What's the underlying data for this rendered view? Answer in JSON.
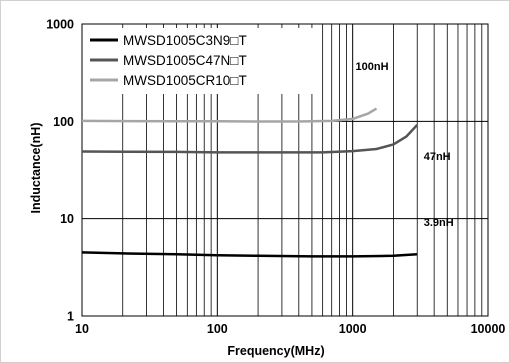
{
  "chart_data": {
    "type": "line",
    "title": "",
    "xlabel": "Frequency(MHz)",
    "ylabel": "Inductance(nH)",
    "xscale": "log",
    "yscale": "log",
    "xlim": [
      10,
      10000
    ],
    "ylim": [
      1,
      1000
    ],
    "x_tick_labels": [
      "10",
      "100",
      "1000",
      "10000"
    ],
    "y_tick_labels": [
      "1",
      "10",
      "100",
      "1000"
    ],
    "grid": true,
    "legend_position": "top-left",
    "series": [
      {
        "name": "MWSD1005C3N9□T",
        "color": "#000000",
        "points": [
          [
            10,
            4.5
          ],
          [
            20,
            4.4
          ],
          [
            50,
            4.3
          ],
          [
            100,
            4.2
          ],
          [
            200,
            4.15
          ],
          [
            500,
            4.1
          ],
          [
            1000,
            4.1
          ],
          [
            2000,
            4.15
          ],
          [
            3000,
            4.3
          ]
        ]
      },
      {
        "name": "MWSD1005C47N□T",
        "color": "#555555",
        "points": [
          [
            10,
            49
          ],
          [
            50,
            48.5
          ],
          [
            100,
            48
          ],
          [
            300,
            48
          ],
          [
            600,
            48
          ],
          [
            1000,
            49.5
          ],
          [
            1500,
            52
          ],
          [
            2000,
            58
          ],
          [
            2500,
            70
          ],
          [
            3000,
            92
          ]
        ]
      },
      {
        "name": "MWSD1005CR10□T",
        "color": "#a6a6a6",
        "points": [
          [
            10,
            101
          ],
          [
            50,
            100
          ],
          [
            100,
            100
          ],
          [
            200,
            99.5
          ],
          [
            400,
            99.5
          ],
          [
            700,
            101
          ],
          [
            1000,
            106
          ],
          [
            1300,
            120
          ],
          [
            1500,
            135
          ]
        ]
      }
    ],
    "annotations": [
      {
        "text": "100nH",
        "x": 1050,
        "y": 370
      },
      {
        "text": "47nH",
        "x": 3350,
        "y": 44
      },
      {
        "text": "3.9nH",
        "x": 3350,
        "y": 9.2
      }
    ]
  }
}
